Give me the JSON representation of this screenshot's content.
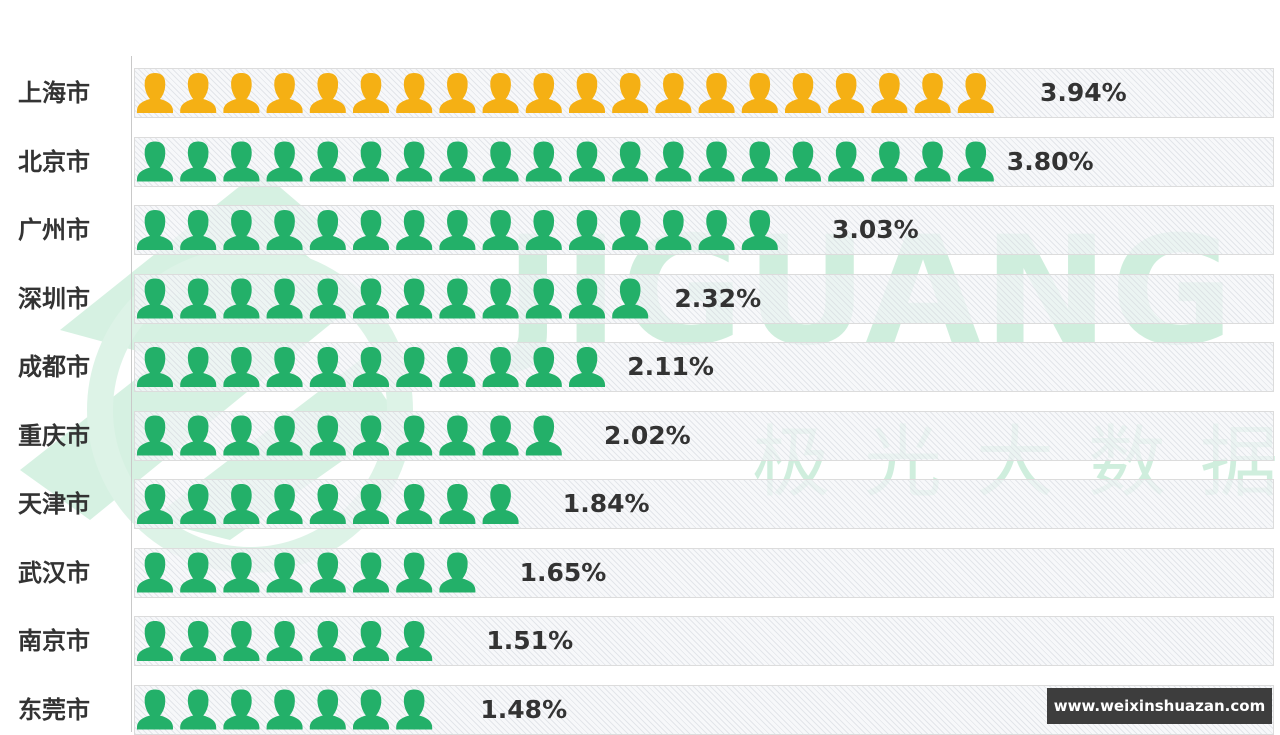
{
  "chart_data": {
    "type": "bar",
    "title": "",
    "categories": [
      "上海市",
      "北京市",
      "广州市",
      "深圳市",
      "成都市",
      "重庆市",
      "天津市",
      "武汉市",
      "南京市",
      "东莞市"
    ],
    "values": [
      3.94,
      3.8,
      3.03,
      2.32,
      2.11,
      2.02,
      1.84,
      1.65,
      1.51,
      1.48
    ],
    "value_labels": [
      "3.94%",
      "3.80%",
      "3.03%",
      "2.32%",
      "2.11%",
      "2.02%",
      "1.84%",
      "1.65%",
      "1.51%",
      "1.48%"
    ],
    "unit": "%",
    "orientation": "horizontal",
    "mark": "person-icon",
    "units_per_icon": 0.19,
    "highlight_color": "#f5b014",
    "bar_color": "#23b069",
    "xlabel": "",
    "ylabel": "",
    "grid": false
  },
  "watermark": {
    "en": "JIGUANG",
    "cn": "极光大数据",
    "color": "#cfeedd"
  },
  "source_banner": "www.weixinshuazan.com"
}
